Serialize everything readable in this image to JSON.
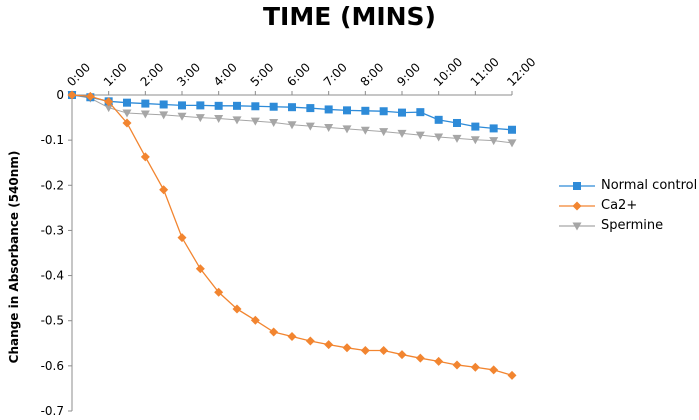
{
  "chart_data": {
    "type": "line",
    "title": "TIME (MINS)",
    "xlabel": "",
    "ylabel": "Change in Absorbance (540nm)",
    "x_ticks": [
      "0:00",
      "1:00",
      "2:00",
      "3:00",
      "4:00",
      "5:00",
      "6:00",
      "7:00",
      "8:00",
      "9:00",
      "10:00",
      "11:00",
      "12:00"
    ],
    "x": [
      0,
      0.5,
      1,
      1.5,
      2,
      2.5,
      3,
      3.5,
      4,
      4.5,
      5,
      5.5,
      6,
      6.5,
      7,
      7.5,
      8,
      8.5,
      9,
      9.5,
      10,
      10.5,
      11,
      11.5,
      12
    ],
    "xlim": [
      0,
      12
    ],
    "ylim": [
      -0.7,
      0
    ],
    "y_ticks": [
      0,
      -0.1,
      -0.2,
      -0.3,
      -0.4,
      -0.5,
      -0.6,
      -0.7
    ],
    "y_tick_labels": [
      "0",
      "-0.1",
      "-0.2",
      "-0.3",
      "-0.4",
      "-0.5",
      "-0.6",
      "-0.7"
    ],
    "x_axis_position": "top",
    "grid": false,
    "legend_position": "right",
    "series": [
      {
        "name": "Normal control",
        "color": "#2E8BD8",
        "marker": "square",
        "values": [
          0,
          -0.005,
          -0.014,
          -0.017,
          -0.019,
          -0.021,
          -0.023,
          -0.023,
          -0.024,
          -0.024,
          -0.025,
          -0.026,
          -0.027,
          -0.029,
          -0.032,
          -0.034,
          -0.035,
          -0.036,
          -0.039,
          -0.038,
          -0.055,
          -0.062,
          -0.07,
          -0.074,
          -0.077
        ]
      },
      {
        "name": "Ca2+",
        "color": "#F28530",
        "marker": "diamond",
        "values": [
          0,
          -0.003,
          -0.015,
          -0.062,
          -0.137,
          -0.21,
          -0.316,
          -0.385,
          -0.437,
          -0.474,
          -0.499,
          -0.525,
          -0.535,
          -0.545,
          -0.553,
          -0.56,
          -0.566,
          -0.566,
          -0.575,
          -0.583,
          -0.59,
          -0.598,
          -0.603,
          -0.609,
          -0.621
        ]
      },
      {
        "name": "Spermine",
        "color": "#A6A6A6",
        "marker": "triangle-down",
        "values": [
          0,
          -0.007,
          -0.028,
          -0.04,
          -0.042,
          -0.044,
          -0.047,
          -0.05,
          -0.052,
          -0.055,
          -0.058,
          -0.061,
          -0.066,
          -0.069,
          -0.072,
          -0.075,
          -0.078,
          -0.081,
          -0.085,
          -0.089,
          -0.093,
          -0.096,
          -0.099,
          -0.101,
          -0.106
        ]
      }
    ]
  }
}
